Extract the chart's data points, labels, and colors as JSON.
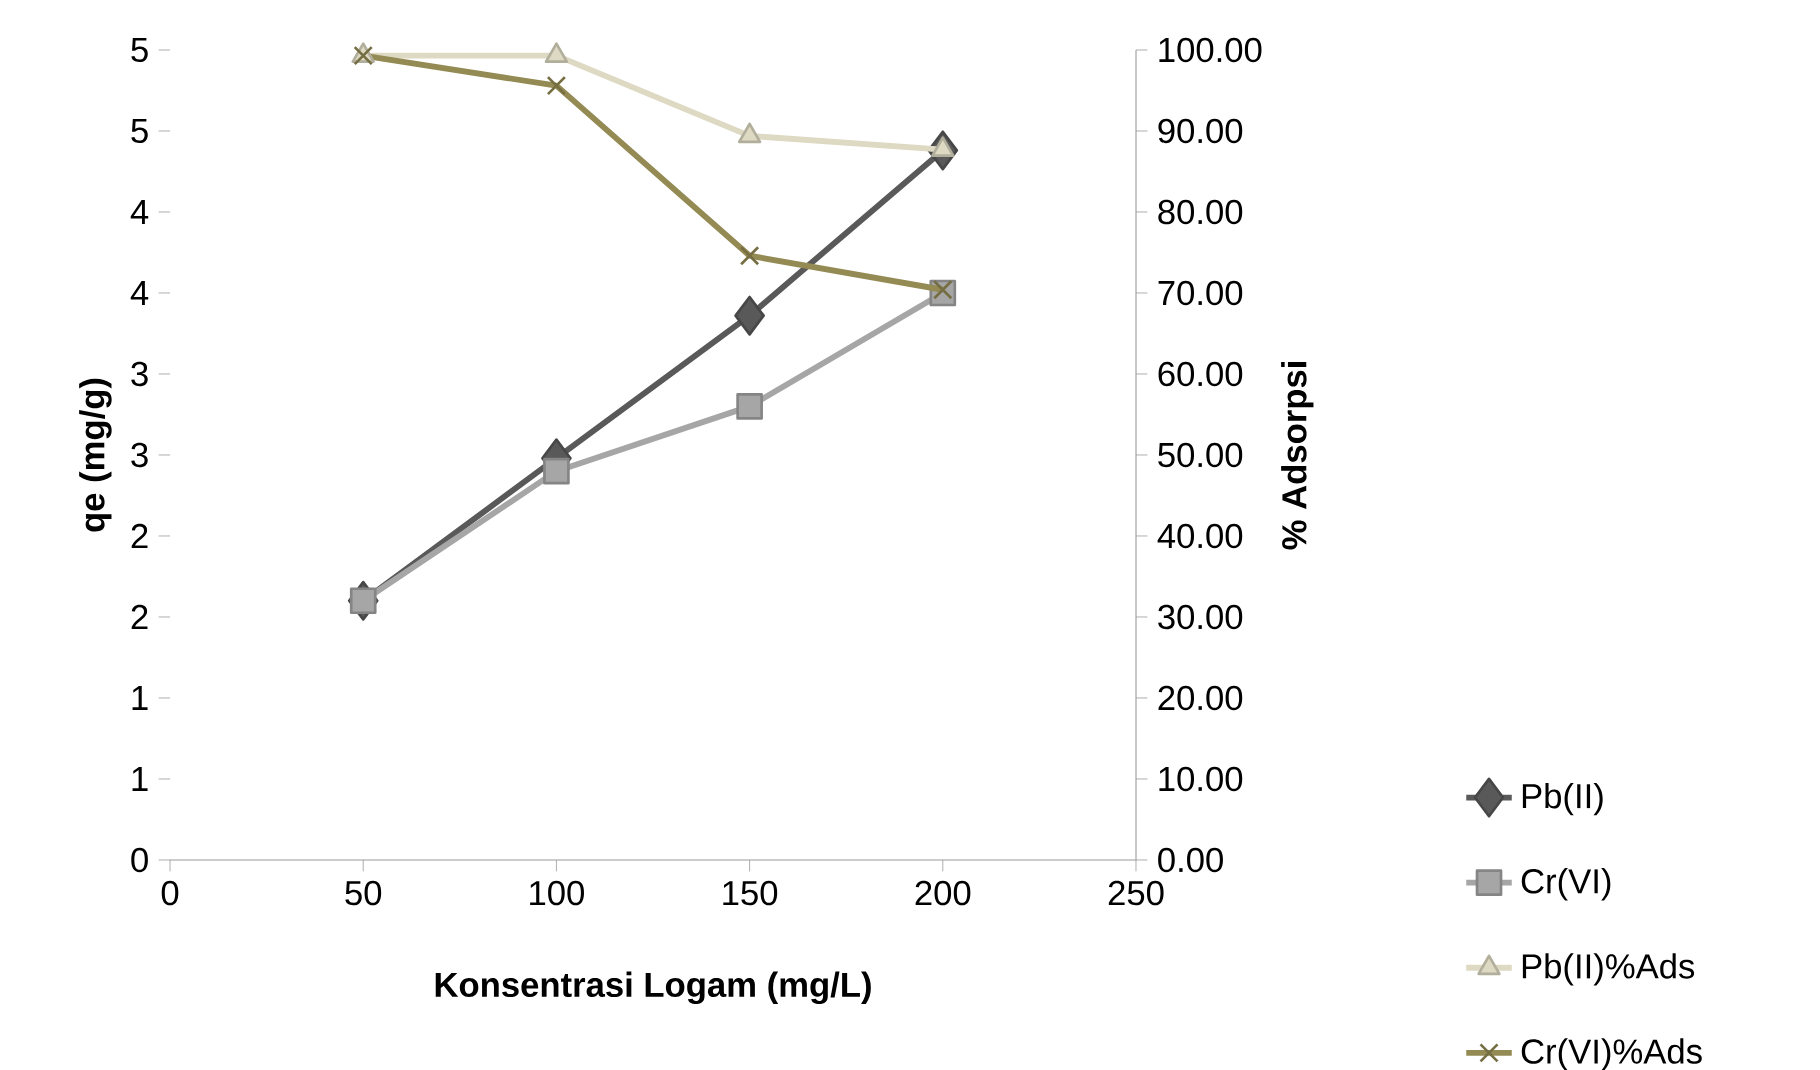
{
  "chart_data": {
    "type": "line",
    "xlabel": "Konsentrasi Logam (mg/L)",
    "ylabel": "qe (mg/g)",
    "y2label": "% Adsorpsi",
    "x": [
      50,
      100,
      150,
      200
    ],
    "xlim": [
      0,
      250
    ],
    "xticks": [
      0,
      50,
      100,
      150,
      200,
      250
    ],
    "ylim": [
      0,
      5
    ],
    "yticks": [
      0,
      {
        "value": 0.5,
        "label": "1"
      },
      1,
      {
        "value": 1.5,
        "label": "2"
      },
      2,
      {
        "value": 2.5,
        "label": "3"
      },
      3,
      {
        "value": 3.5,
        "label": "4"
      },
      4,
      {
        "value": 4.5,
        "label": "5"
      },
      5
    ],
    "y2lim": [
      0,
      100
    ],
    "y2ticks": [
      {
        "value": 0,
        "label": "0.00"
      },
      {
        "value": 10,
        "label": "10.00"
      },
      {
        "value": 20,
        "label": "20.00"
      },
      {
        "value": 30,
        "label": "30.00"
      },
      {
        "value": 40,
        "label": "40.00"
      },
      {
        "value": 50,
        "label": "50.00"
      },
      {
        "value": 60,
        "label": "60.00"
      },
      {
        "value": 70,
        "label": "70.00"
      },
      {
        "value": 80,
        "label": "80.00"
      },
      {
        "value": 90,
        "label": "90.00"
      },
      {
        "value": 100,
        "label": "100.00"
      }
    ],
    "legend": "right",
    "grid": false,
    "series": [
      {
        "name": "Pb(II)",
        "color": "#595959",
        "marker": "diamond",
        "values": [
          1.6,
          2.48,
          3.36,
          4.38
        ]
      },
      {
        "name": "Cr(VI)",
        "color": "#a6a6a6",
        "marker": "square",
        "values": [
          1.6,
          2.4,
          2.8,
          3.5
        ]
      },
      {
        "name": "Pb(II)%Ads",
        "color": "#ddd9c3",
        "marker": "triangle",
        "axis": "y2",
        "values": [
          99.3,
          99.3,
          89.4,
          87.7
        ]
      },
      {
        "name": "Cr(VI)%Ads",
        "color": "#948a54",
        "marker": "cross",
        "axis": "y2",
        "values": [
          99.3,
          95.6,
          74.6,
          70.4
        ]
      }
    ]
  }
}
